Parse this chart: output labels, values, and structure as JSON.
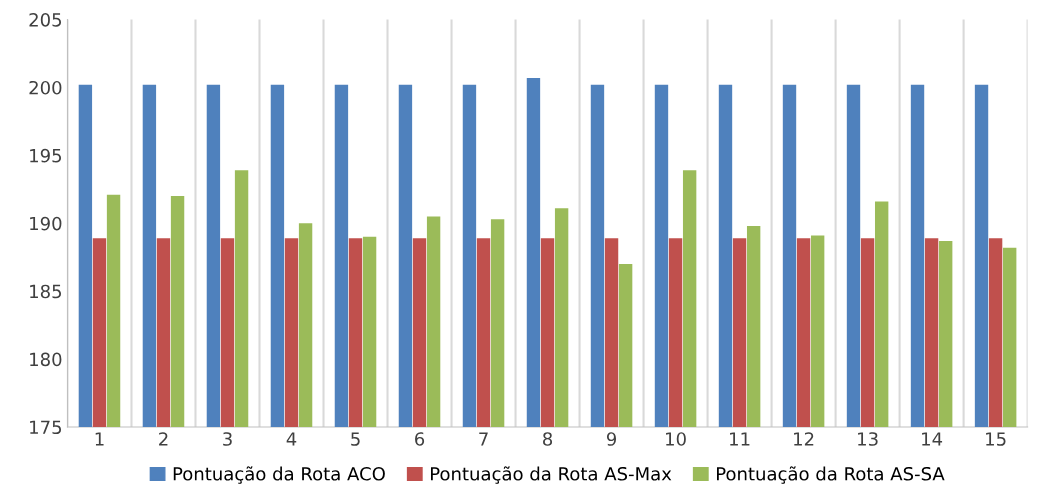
{
  "chart_data": {
    "type": "bar",
    "categories": [
      "1",
      "2",
      "3",
      "4",
      "5",
      "6",
      "7",
      "8",
      "9",
      "10",
      "11",
      "12",
      "13",
      "14",
      "15"
    ],
    "series": [
      {
        "name": "Pontuação da Rota ACO",
        "color": "#4f81bd",
        "values": [
          200.2,
          200.2,
          200.2,
          200.2,
          200.2,
          200.2,
          200.2,
          200.7,
          200.2,
          200.2,
          200.2,
          200.2,
          200.2,
          200.2,
          200.2
        ]
      },
      {
        "name": "Pontuação da Rota AS-Max",
        "color": "#c0504d",
        "values": [
          188.9,
          188.9,
          188.9,
          188.9,
          188.9,
          188.9,
          188.9,
          188.9,
          188.9,
          188.9,
          188.9,
          188.9,
          188.9,
          188.9,
          188.9
        ]
      },
      {
        "name": "Pontuação da Rota AS-SA",
        "color": "#9bbb59",
        "values": [
          192.1,
          192.0,
          193.9,
          190.0,
          189.0,
          190.5,
          190.3,
          191.1,
          187.0,
          193.9,
          189.8,
          189.1,
          191.6,
          188.7,
          188.2
        ]
      }
    ],
    "ylim": [
      175,
      205
    ],
    "yticks": [
      175,
      180,
      185,
      190,
      195,
      200,
      205
    ],
    "grid": "x",
    "legend": "bottom"
  }
}
